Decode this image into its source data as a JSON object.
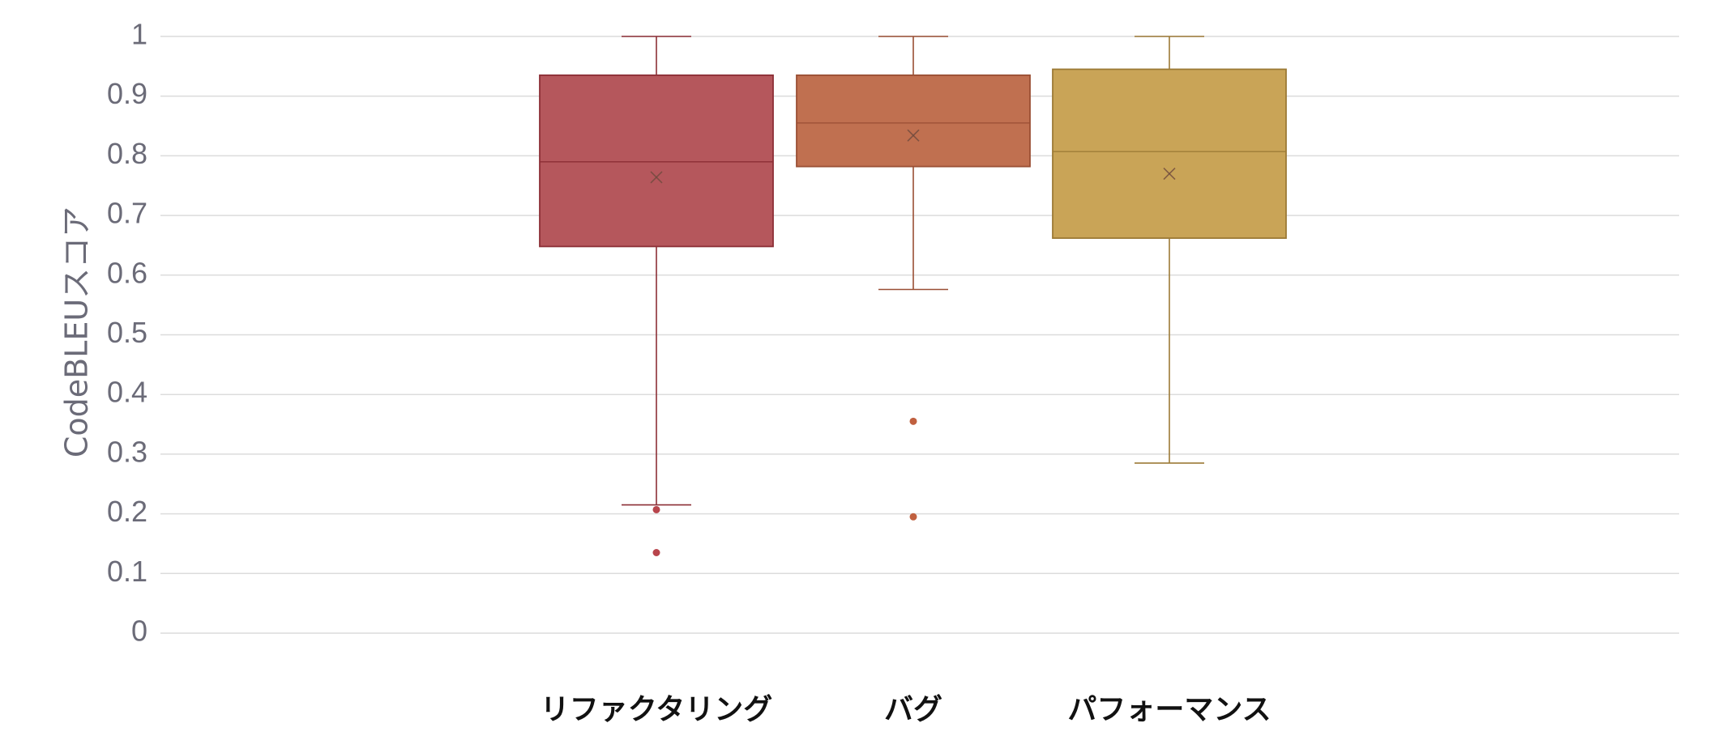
{
  "chart_data": {
    "type": "box",
    "ylabel": "CodeBLEUスコア",
    "ylim": [
      0,
      1
    ],
    "yticks": [
      "0",
      "0.1",
      "0.2",
      "0.3",
      "0.4",
      "0.5",
      "0.6",
      "0.7",
      "0.8",
      "0.9",
      "1"
    ],
    "grid": true,
    "categories": [
      "リファクタリング",
      "バグ",
      "パフォーマンス"
    ],
    "boxes": [
      {
        "name": "リファクタリング",
        "color": "#b5575c",
        "edge": "#8c2f36",
        "whisker_low": 0.215,
        "q1": 0.648,
        "median": 0.79,
        "q3": 0.935,
        "whisker_high": 1.0,
        "mean": 0.764,
        "outliers": [
          0.207,
          0.135
        ]
      },
      {
        "name": "バグ",
        "color": "#c07050",
        "edge": "#9a4f34",
        "whisker_low": 0.576,
        "q1": 0.782,
        "median": 0.855,
        "q3": 0.935,
        "whisker_high": 1.0,
        "mean": 0.834,
        "outliers": [
          0.355,
          0.195
        ]
      },
      {
        "name": "パフォーマンス",
        "color": "#c9a457",
        "edge": "#9c7a36",
        "whisker_low": 0.285,
        "q1": 0.662,
        "median": 0.807,
        "q3": 0.945,
        "whisker_high": 1.0,
        "mean": 0.77,
        "outliers": []
      }
    ]
  }
}
